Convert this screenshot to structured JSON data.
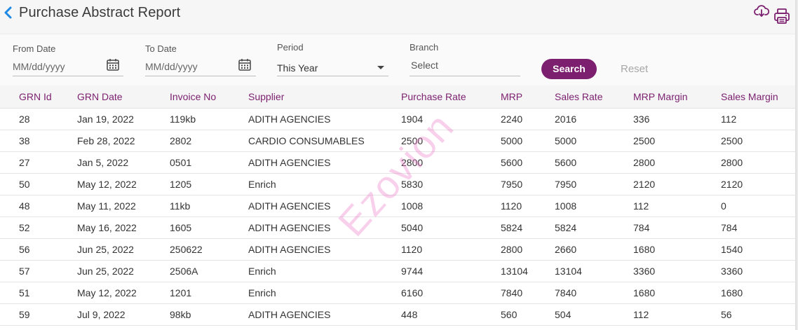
{
  "header": {
    "title": "Purchase Abstract Report",
    "back_icon": "chevron-left-icon",
    "download_icon": "cloud-download-icon",
    "print_icon": "printer-icon",
    "accent_color": "#1e88e5"
  },
  "filters": {
    "from_date": {
      "label": "From Date",
      "placeholder": "MM/dd/yyyy"
    },
    "to_date": {
      "label": "To Date",
      "placeholder": "MM/dd/yyyy"
    },
    "period": {
      "label": "Period",
      "value": "This Year"
    },
    "branch": {
      "label": "Branch",
      "value": "Select"
    },
    "search_label": "Search",
    "reset_label": "Reset",
    "primary_color": "#7b1f6e"
  },
  "table": {
    "columns": [
      "GRN Id",
      "GRN Date",
      "Invoice No",
      "Supplier",
      "Purchase Rate",
      "MRP",
      "Sales Rate",
      "MRP Margin",
      "Sales Margin"
    ],
    "rows": [
      [
        "28",
        "Jan 19, 2022",
        "119kb",
        "ADITH AGENCIES",
        "1904",
        "2240",
        "2016",
        "336",
        "112"
      ],
      [
        "38",
        "Feb 28, 2022",
        "2802",
        "CARDIO CONSUMABLES",
        "2500",
        "5000",
        "5000",
        "2500",
        "2500"
      ],
      [
        "27",
        "Jan 5, 2022",
        "0501",
        "ADITH AGENCIES",
        "2800",
        "5600",
        "5600",
        "2800",
        "2800"
      ],
      [
        "50",
        "May 12, 2022",
        "1205",
        "Enrich",
        "5830",
        "7950",
        "7950",
        "2120",
        "2120"
      ],
      [
        "48",
        "May 11, 2022",
        "11kb",
        "ADITH AGENCIES",
        "1008",
        "1120",
        "1008",
        "112",
        "0"
      ],
      [
        "52",
        "May 16, 2022",
        "1605",
        "ADITH AGENCIES",
        "5040",
        "5824",
        "5824",
        "784",
        "784"
      ],
      [
        "56",
        "Jun 25, 2022",
        "250622",
        "ADITH AGENCIES",
        "1120",
        "2800",
        "2660",
        "1680",
        "1540"
      ],
      [
        "57",
        "Jun 25, 2022",
        "2506A",
        "Enrich",
        "9744",
        "13104",
        "13104",
        "3360",
        "3360"
      ],
      [
        "51",
        "May 12, 2022",
        "1201",
        "Enrich",
        "6160",
        "7840",
        "7840",
        "1680",
        "1680"
      ],
      [
        "59",
        "Jul 9, 2022",
        "98kb",
        "ADITH AGENCIES",
        "448",
        "560",
        "504",
        "112",
        "56"
      ]
    ]
  },
  "watermark": "Ezovion"
}
